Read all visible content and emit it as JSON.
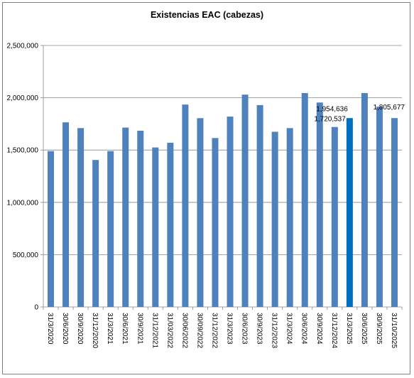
{
  "chart_data": {
    "type": "bar",
    "title": "Existencias EAC (cabezas)",
    "xlabel": "",
    "ylabel": "",
    "ylim": [
      0,
      2500000
    ],
    "yticks": [
      0,
      500000,
      1000000,
      1500000,
      2000000,
      2500000
    ],
    "ytick_labels": [
      "0",
      "500,000",
      "1,000,000",
      "1,500,000",
      "2,000,000",
      "2,500,000"
    ],
    "grid": true,
    "categories": [
      "31/3/2020",
      "30/6/2020",
      "30/9/2020",
      "31/12/2020",
      "31/3/2021",
      "30/6/2021",
      "30/9/2021",
      "31/12/2021",
      "31/03/2022",
      "30/06/2022",
      "30/09/2022",
      "31/12/2022",
      "31/3/2023",
      "30/6/2023",
      "30/9/2023",
      "31/12/2023",
      "31/3/2024",
      "30/6/2024",
      "30/9/2024",
      "31/12/2024",
      "31/3/2025",
      "30/6/2025",
      "30/9/2025",
      "31/10/2025"
    ],
    "values": [
      1490000,
      1765000,
      1710000,
      1405000,
      1490000,
      1715000,
      1685000,
      1525000,
      1570000,
      1935000,
      1805000,
      1615000,
      1820000,
      2030000,
      1930000,
      1675000,
      1710000,
      2045000,
      1954636,
      1720537,
      1805677,
      2045000,
      1915000,
      1805677
    ],
    "data_labels": [
      {
        "index": 18,
        "text": "1,954,636"
      },
      {
        "index": 19,
        "text": "1,720,537"
      },
      {
        "index": 23,
        "text": "1,805,677"
      }
    ],
    "colors": {
      "bar": "#4f81bd",
      "highlight": "#0070c0",
      "grid": "#868686",
      "axis": "#868686"
    },
    "highlight_index": 20
  }
}
